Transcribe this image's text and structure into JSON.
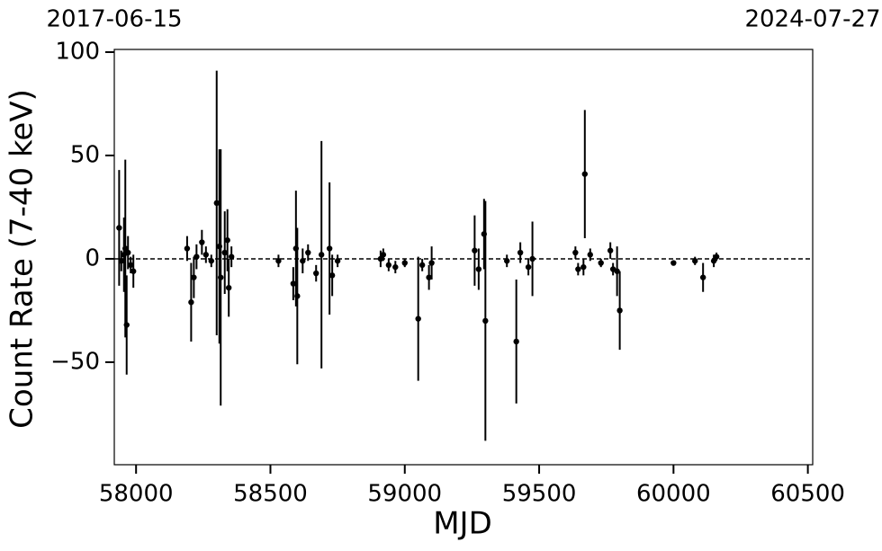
{
  "chart_data": {
    "type": "scatter",
    "x_label": "MJD",
    "y_label": "Count Rate (7-40 keV)",
    "xlim": [
      57919,
      60518
    ],
    "ylim": [
      -99.6,
      101.3
    ],
    "xticks": [
      58000,
      58500,
      59000,
      59500,
      60000,
      60500
    ],
    "yticks": [
      {
        "value": -50,
        "label": "−50"
      },
      0,
      50,
      100
    ],
    "x2ticks": [
      {
        "value": 57919,
        "label": "2017-06-15"
      },
      {
        "value": 60518,
        "label": "2024-07-27"
      }
    ],
    "reference_line": 0,
    "color": "#000000",
    "series": [
      {
        "x": [
          57937,
          57945,
          57955,
          57960,
          57965,
          57970,
          57980,
          57990,
          58190,
          58205,
          58215,
          58225,
          58245,
          58260,
          58280,
          58300,
          58310,
          58315,
          58330,
          58340,
          58345,
          58355,
          58530,
          58585,
          58595,
          58600,
          58620,
          58640,
          58670,
          58690,
          58720,
          58730,
          58750,
          58910,
          58920,
          58940,
          58965,
          59000,
          59050,
          59065,
          59090,
          59100,
          59260,
          59275,
          59295,
          59300,
          59380,
          59415,
          59430,
          59460,
          59475,
          59635,
          59645,
          59665,
          59670,
          59690,
          59730,
          59765,
          59775,
          59790,
          59800,
          60000,
          60080,
          60110,
          60150,
          60160
        ],
        "values": [
          15,
          -1,
          2,
          5,
          -32,
          3,
          -3,
          -6,
          5,
          -21,
          -9,
          1,
          8,
          2,
          -1,
          27,
          6,
          -9,
          3,
          9,
          -14,
          1,
          -1,
          -12,
          5,
          -18,
          -1,
          3,
          -7,
          2,
          5,
          -8,
          -1,
          0,
          2,
          -3,
          -4,
          -2,
          -29,
          -3,
          -9,
          -2,
          4,
          -5,
          12,
          -30,
          -1,
          -40,
          3,
          -4,
          0,
          3,
          -5,
          -4,
          41,
          2,
          -2,
          4,
          -5,
          -6,
          -25,
          -2,
          -1,
          -9,
          -1,
          1
        ],
        "errors": [
          28,
          5,
          18,
          43,
          24,
          8,
          4,
          8,
          6,
          19,
          10,
          6,
          6,
          4,
          3,
          64,
          47,
          62,
          20,
          15,
          14,
          5,
          3,
          8,
          28,
          33,
          6,
          4,
          4,
          55,
          32,
          10,
          3,
          4,
          3,
          3,
          3,
          2,
          30,
          3,
          6,
          8,
          17,
          10,
          17,
          58,
          3,
          30,
          5,
          4,
          18,
          3,
          3,
          4,
          31,
          3,
          2,
          4,
          3,
          12,
          19,
          1,
          2,
          7,
          3,
          2
        ]
      }
    ]
  }
}
